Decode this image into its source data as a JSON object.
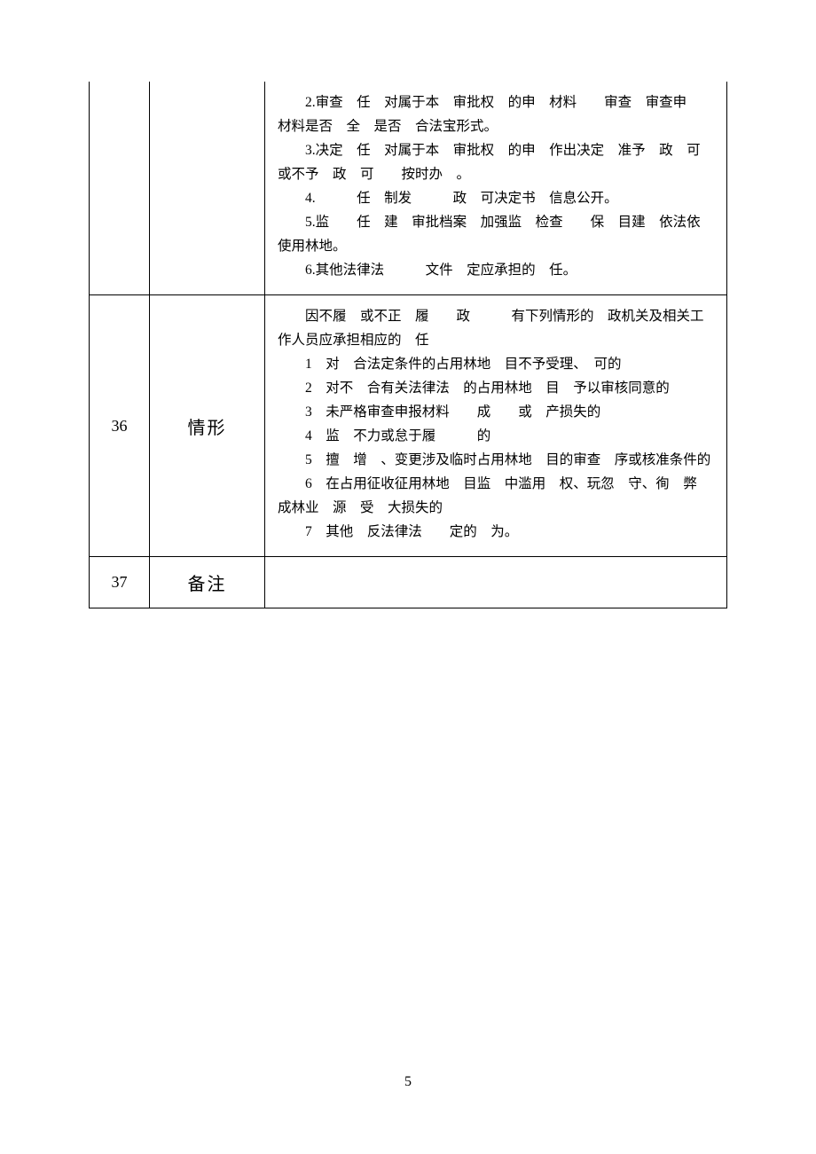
{
  "page_number": "5",
  "rows": [
    {
      "num": "",
      "label": "",
      "lines": [
        "2.审查　任　对属于本　审批权　的申　材料　　审查　审查申　材料是否　全　是否　合法宝形式。",
        "3.决定　任　对属于本　审批权　的申　作出决定　准予　政　可或不予　政　可　　按时办　。",
        "4.　　　任　制发　　　政　可决定书　信息公开。",
        "5.监　　任　建　审批档案　加强监　检查　　保　目建　依法依　使用林地。",
        "6.其他法律法　　　文件　定应承担的　任。"
      ]
    },
    {
      "num": "36",
      "label": "情形",
      "lines": [
        "因不履　或不正　履　　政　　　有下列情形的　政机关及相关工作人员应承担相应的　任",
        "1　对　合法定条件的占用林地　目不予受理、　可的",
        "2　对不　合有关法律法　的占用林地　目　予以审核同意的",
        "3　未严格审查申报材料　　成　　或　产损失的",
        "4　监　不力或怠于履　　　的",
        "5　擅　增　、变更涉及临时占用林地　目的审查　序或核准条件的",
        "6　在占用征收征用林地　目监　中滥用　权、玩忽　守、徇　弊　　成林业　源　受　大损失的",
        "7　其他　反法律法　　定的　为。"
      ]
    },
    {
      "num": "37",
      "label": "备注",
      "lines": []
    }
  ]
}
